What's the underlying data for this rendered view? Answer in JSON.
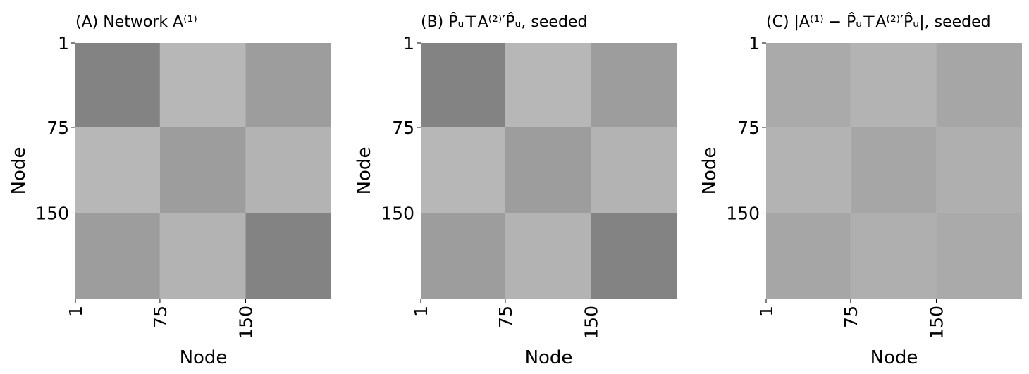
{
  "chart_data": [
    {
      "type": "heatmap",
      "title": "(A) Network A⁽¹⁾",
      "xlabel": "Node",
      "ylabel": "Node",
      "xlim": [
        1,
        225
      ],
      "ylim": [
        1,
        225
      ],
      "xticks": [
        1,
        75,
        150
      ],
      "yticks": [
        1,
        75,
        150
      ],
      "block_edges": [
        1,
        75,
        150,
        225
      ],
      "values": [
        [
          0.7,
          0.1,
          0.4
        ],
        [
          0.1,
          0.4,
          0.15
        ],
        [
          0.4,
          0.15,
          0.7
        ]
      ],
      "low_color": "#c0c0c0",
      "high_color": "#696969"
    },
    {
      "type": "heatmap",
      "title": "(B) P̂ᵤ⊤A⁽²⁾′P̂ᵤ, seeded",
      "xlabel": "Node",
      "ylabel": "Node",
      "xlim": [
        1,
        225
      ],
      "ylim": [
        1,
        225
      ],
      "xticks": [
        1,
        75,
        150
      ],
      "yticks": [
        1,
        75,
        150
      ],
      "block_edges": [
        1,
        75,
        150,
        225
      ],
      "values": [
        [
          0.7,
          0.1,
          0.4
        ],
        [
          0.1,
          0.4,
          0.15
        ],
        [
          0.4,
          0.15,
          0.7
        ]
      ],
      "low_color": "#c0c0c0",
      "high_color": "#696969"
    },
    {
      "type": "heatmap",
      "title": "(C) |A⁽¹⁾ − P̂ᵤ⊤A⁽²⁾′P̂ᵤ|, seeded",
      "xlabel": "Node",
      "ylabel": "Node",
      "xlim": [
        1,
        225
      ],
      "ylim": [
        1,
        225
      ],
      "xticks": [
        1,
        75,
        150
      ],
      "yticks": [
        1,
        75,
        150
      ],
      "block_edges": [
        1,
        75,
        150,
        225
      ],
      "values": [
        [
          0.25,
          0.15,
          0.3
        ],
        [
          0.15,
          0.3,
          0.2
        ],
        [
          0.3,
          0.2,
          0.25
        ]
      ],
      "low_color": "#c0c0c0",
      "high_color": "#696969"
    }
  ]
}
